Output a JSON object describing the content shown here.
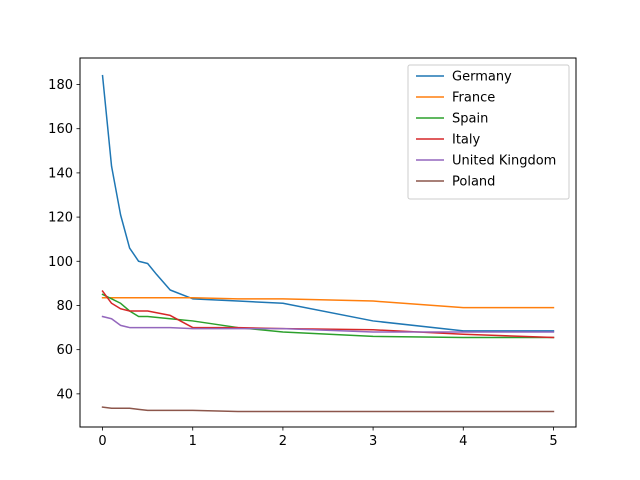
{
  "chart_data": {
    "type": "line",
    "title": "",
    "xlabel": "",
    "ylabel": "",
    "xlim": [
      -0.25,
      5.25
    ],
    "ylim": [
      25,
      192
    ],
    "xticks": [
      0,
      1,
      2,
      3,
      4,
      5
    ],
    "yticks": [
      40,
      60,
      80,
      100,
      120,
      140,
      160,
      180
    ],
    "grid": false,
    "legend_position": "top-right",
    "series": [
      {
        "name": "Germany",
        "color": "#1f77b4",
        "x": [
          0,
          0.1,
          0.2,
          0.3,
          0.4,
          0.5,
          0.6,
          0.75,
          1,
          1.5,
          2,
          3,
          4,
          5
        ],
        "y": [
          184,
          143,
          121,
          106,
          100,
          99,
          94,
          87,
          83,
          82,
          81,
          73,
          68.5,
          68.5
        ]
      },
      {
        "name": "France",
        "color": "#ff7f0e",
        "x": [
          0,
          0.5,
          1,
          1.5,
          2,
          3,
          4,
          5
        ],
        "y": [
          83.5,
          83.5,
          83.5,
          83,
          83,
          82,
          79,
          79
        ]
      },
      {
        "name": "Spain",
        "color": "#2ca02c",
        "x": [
          0,
          0.1,
          0.2,
          0.3,
          0.4,
          0.5,
          0.75,
          1,
          1.5,
          2,
          3,
          4,
          5
        ],
        "y": [
          85,
          83,
          81,
          77.5,
          75,
          75,
          74,
          73,
          70,
          68,
          66,
          65.5,
          65.5
        ]
      },
      {
        "name": "Italy",
        "color": "#d62728",
        "x": [
          0,
          0.1,
          0.2,
          0.3,
          0.4,
          0.5,
          0.75,
          1,
          1.5,
          2,
          3,
          4,
          5
        ],
        "y": [
          86.5,
          81,
          78.5,
          77.5,
          77.5,
          77.5,
          75.5,
          70,
          70,
          69.5,
          69,
          67,
          65.5
        ]
      },
      {
        "name": "United Kingdom",
        "color": "#9467bd",
        "x": [
          0,
          0.1,
          0.2,
          0.3,
          0.4,
          0.5,
          0.75,
          1,
          1.5,
          2,
          3,
          4,
          5
        ],
        "y": [
          75,
          74,
          71,
          70,
          70,
          70,
          70,
          69.5,
          69.5,
          69.5,
          68,
          68,
          68
        ]
      },
      {
        "name": "Poland",
        "color": "#8c564b",
        "x": [
          0,
          0.1,
          0.2,
          0.3,
          0.4,
          0.5,
          0.75,
          1,
          1.5,
          2,
          3,
          4,
          5
        ],
        "y": [
          34,
          33.5,
          33.5,
          33.5,
          33,
          32.5,
          32.5,
          32.5,
          32,
          32,
          32,
          32,
          32
        ]
      }
    ]
  }
}
